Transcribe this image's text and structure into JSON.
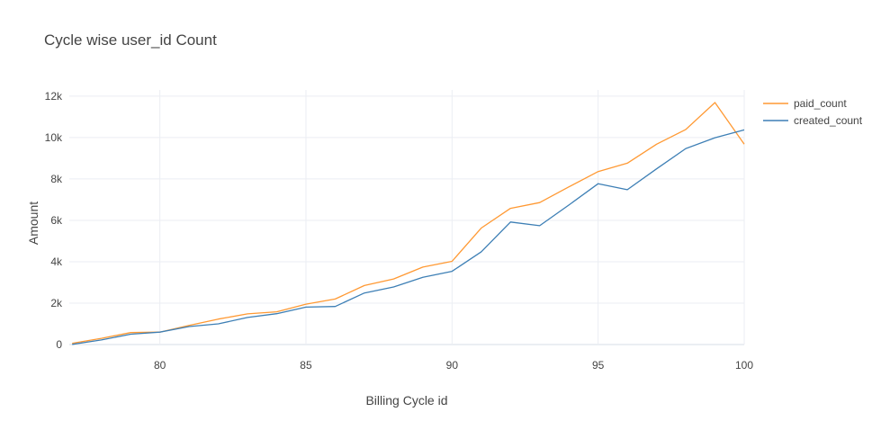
{
  "chart_data": {
    "type": "line",
    "title": "Cycle wise user_id Count",
    "xlabel": "Billing Cycle id",
    "ylabel": "Amount",
    "xlim": [
      76.9,
      100
    ],
    "ylim": [
      0,
      12300
    ],
    "x_ticks": [
      80,
      85,
      90,
      95,
      100
    ],
    "y_ticks": [
      {
        "value": 0,
        "label": "0"
      },
      {
        "value": 2000,
        "label": "2k"
      },
      {
        "value": 4000,
        "label": "4k"
      },
      {
        "value": 6000,
        "label": "6k"
      },
      {
        "value": 8000,
        "label": "8k"
      },
      {
        "value": 10000,
        "label": "10k"
      },
      {
        "value": 12000,
        "label": "12k"
      }
    ],
    "grid": true,
    "legend_position": "top-right",
    "x": [
      77,
      78,
      79,
      80,
      81,
      82,
      83,
      84,
      85,
      86,
      87,
      88,
      89,
      90,
      91,
      92,
      93,
      94,
      95,
      96,
      97,
      98,
      99,
      100
    ],
    "series": [
      {
        "name": "paid_count",
        "color": "#ff9933",
        "values": [
          60,
          300,
          580,
          600,
          920,
          1230,
          1480,
          1580,
          1950,
          2200,
          2850,
          3170,
          3740,
          4020,
          5630,
          6580,
          6860,
          7620,
          8360,
          8760,
          9680,
          10390,
          11690,
          9680
        ]
      },
      {
        "name": "created_count",
        "color": "#3d7fb5",
        "values": [
          10,
          220,
          500,
          600,
          870,
          1000,
          1310,
          1490,
          1810,
          1840,
          2490,
          2780,
          3250,
          3540,
          4480,
          5920,
          5740,
          6740,
          7770,
          7480,
          8490,
          9470,
          9990,
          10370
        ]
      }
    ]
  }
}
